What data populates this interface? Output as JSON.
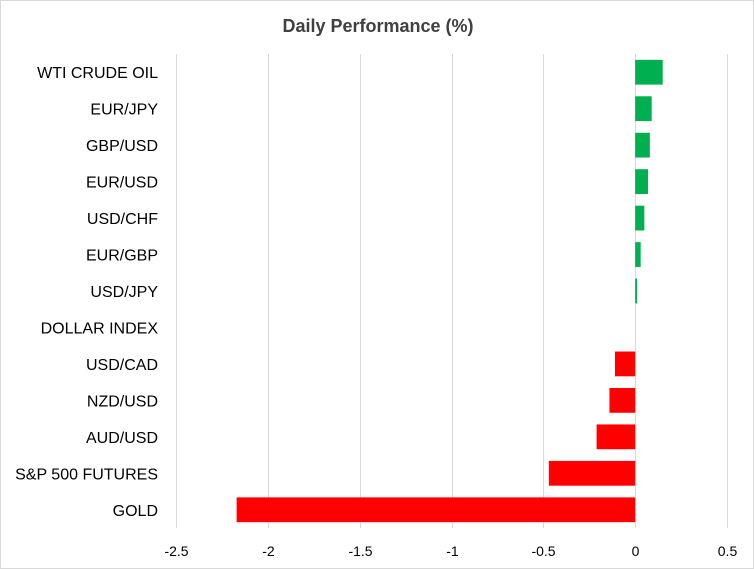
{
  "chart_data": {
    "type": "bar",
    "orientation": "horizontal",
    "title": "Daily Performance (%)",
    "xlabel": "",
    "ylabel": "",
    "categories": [
      "WTI CRUDE OIL",
      "EUR/JPY",
      "GBP/USD",
      "EUR/USD",
      "USD/CHF",
      "EUR/GBP",
      "USD/JPY",
      "DOLLAR INDEX",
      "USD/CAD",
      "NZD/USD",
      "AUD/USD",
      "S&P 500 FUTURES",
      "GOLD"
    ],
    "values": [
      0.15,
      0.09,
      0.08,
      0.07,
      0.05,
      0.03,
      0.01,
      0.0,
      -0.11,
      -0.14,
      -0.21,
      -0.47,
      -2.17
    ],
    "xlim": [
      -2.5,
      0.5
    ],
    "xticks": [
      -2.5,
      -2,
      -1.5,
      -1,
      -0.5,
      0,
      0.5
    ],
    "xtick_labels": [
      "-2.5",
      "-2",
      "-1.5",
      "-1",
      "-0.5",
      "0",
      "0.5"
    ],
    "grid": true,
    "legend": "none",
    "colors": {
      "positive": "#00b050",
      "negative": "#ff0000",
      "grid": "#d9d9d9",
      "title": "#404040"
    }
  }
}
